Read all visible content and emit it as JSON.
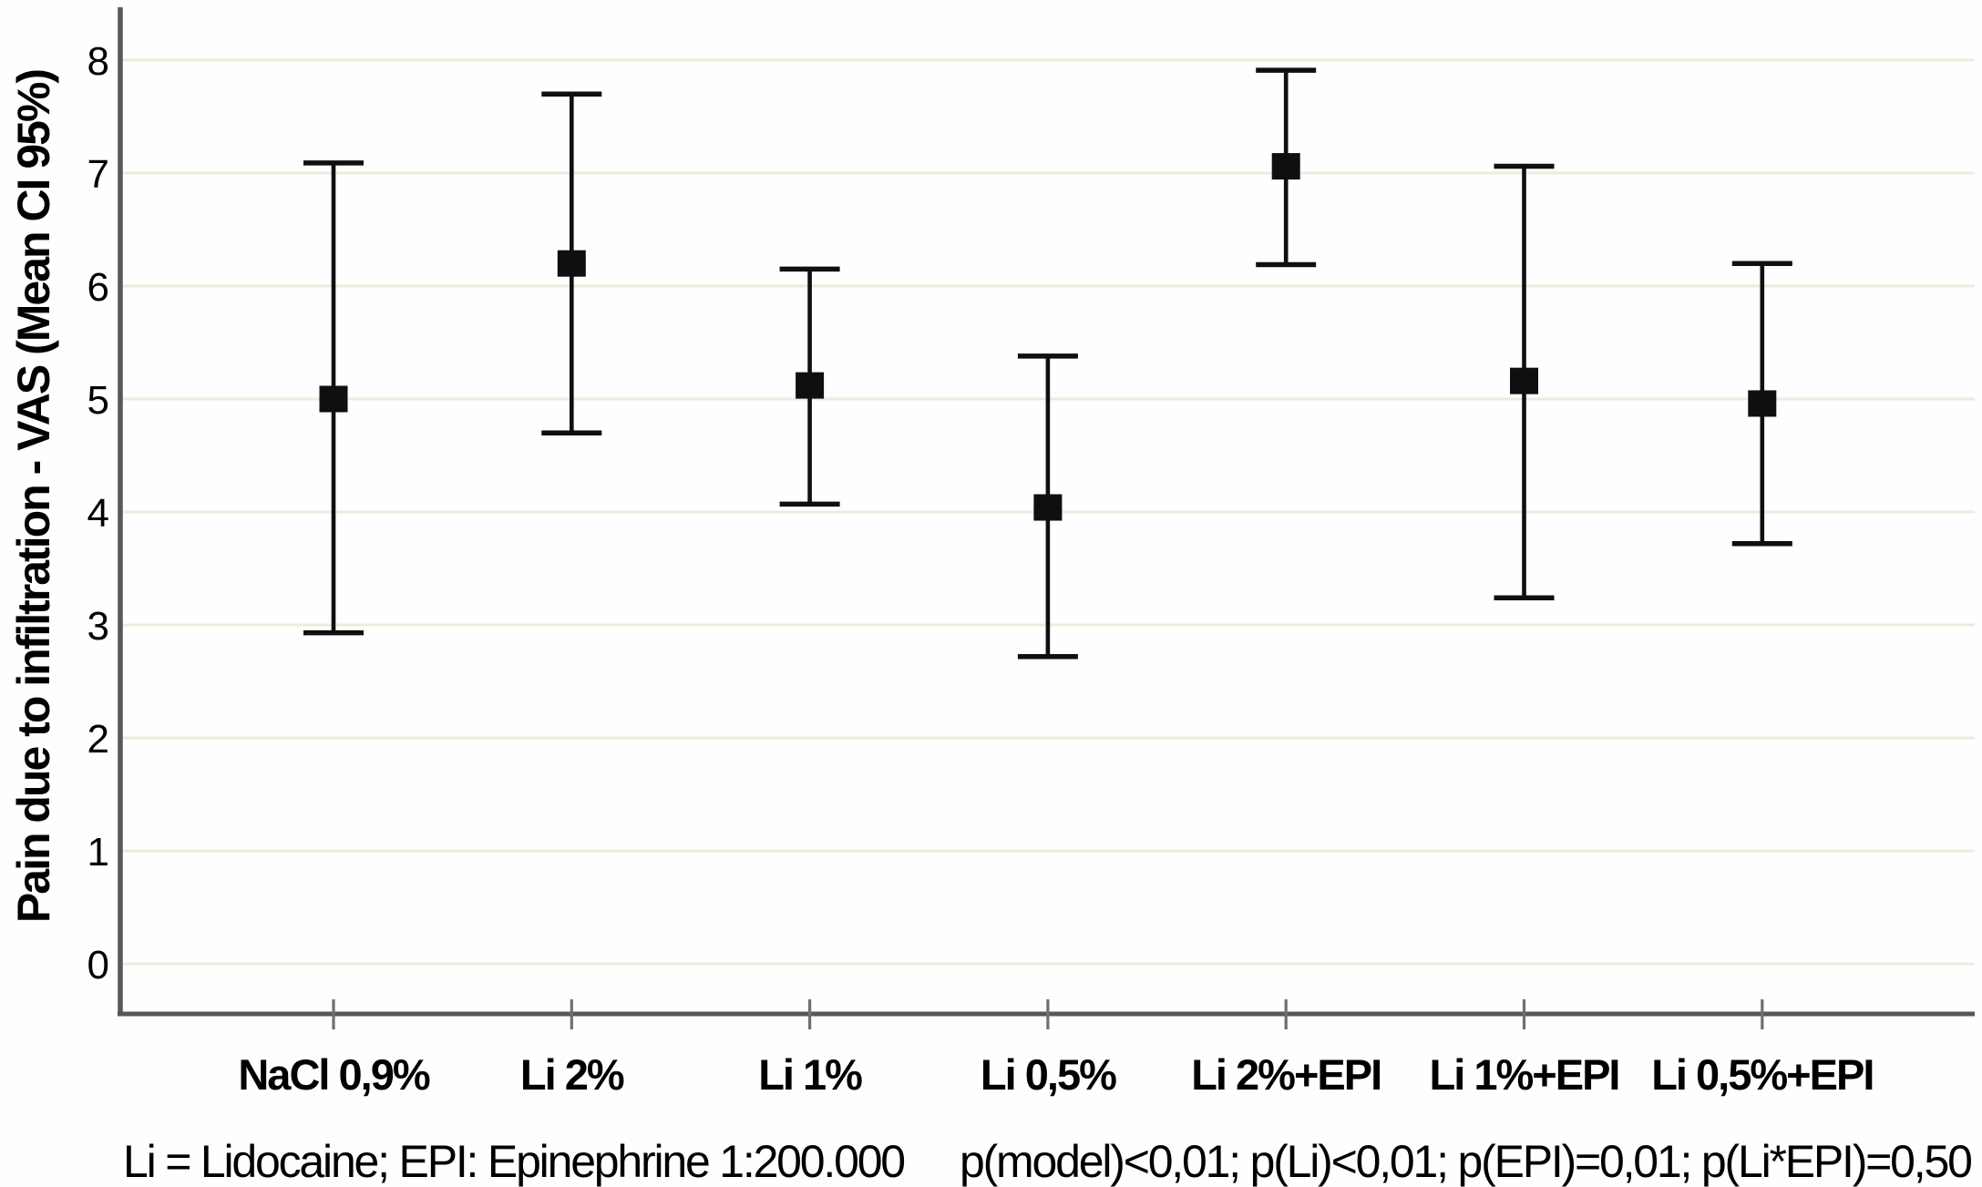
{
  "figure": {
    "ylabel": "Pain due to infiltration - VAS (Mean CI 95%)",
    "footnote_left": "Li = Lidocaine; EPI: Epinephrine 1:200.000",
    "footnote_right": "p(model)<0,01; p(Li)<0,01; p(EPI)=0,01; p(Li*EPI)=0,50"
  },
  "chart_data": {
    "type": "scatter",
    "subtype": "mean-with-95ci-errorbars",
    "title": "",
    "xlabel": "",
    "ylabel": "Pain due to infiltration - VAS (Mean CI 95%)",
    "categories": [
      "NaCl 0,9%",
      "Li 2%",
      "Li 1%",
      "Li 0,5%",
      "Li 2%+EPI",
      "Li 1%+EPI",
      "Li 0,5%+EPI"
    ],
    "series": [
      {
        "name": "Mean (CI 95%)",
        "marker": "filled-square",
        "means": [
          5.0,
          6.2,
          5.12,
          4.04,
          7.06,
          5.16,
          4.96
        ],
        "ci_low": [
          2.93,
          4.7,
          4.07,
          2.72,
          6.19,
          3.24,
          3.72
        ],
        "ci_high": [
          7.09,
          7.7,
          6.15,
          5.38,
          7.91,
          7.06,
          6.2
        ]
      }
    ],
    "yticks": [
      0,
      1,
      2,
      3,
      4,
      5,
      6,
      7,
      8
    ],
    "ylim": [
      -0.45,
      8.45
    ],
    "grid": "horizontal",
    "legend_position": "none",
    "annotations": [
      "Li = Lidocaine; EPI: Epinephrine 1:200.000",
      "p(model)<0,01; p(Li)<0,01; p(EPI)=0,01; p(Li*EPI)=0,50"
    ],
    "colors": {
      "marker": "#0f0f0f",
      "errorbar": "#0f0f0f",
      "gridline": "#eeebdd",
      "axis": "#56575a",
      "tick": "#6f6f6f",
      "text": "#000000",
      "background": "#fefefe"
    }
  }
}
